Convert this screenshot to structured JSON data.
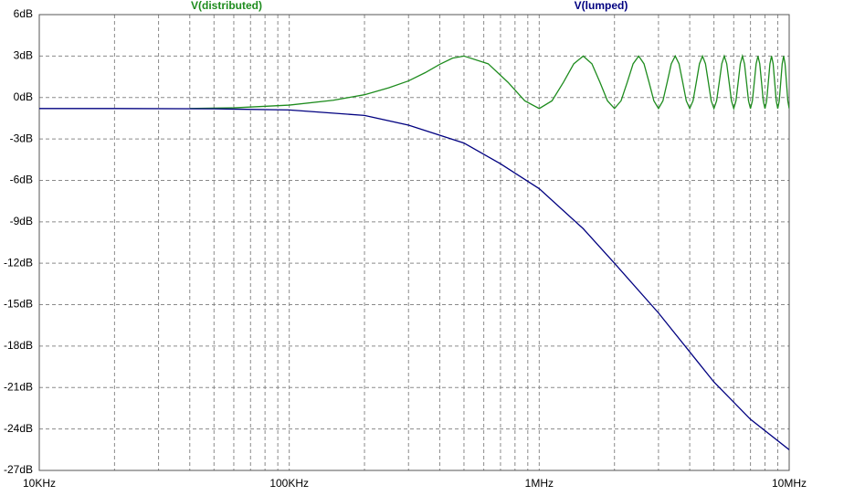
{
  "chart_data": {
    "type": "line",
    "log_x": true,
    "grid": true,
    "xlim": [
      10000,
      10000000
    ],
    "xticks": [
      {
        "value": 10000,
        "label": "10KHz"
      },
      {
        "value": 100000,
        "label": "100KHz"
      },
      {
        "value": 1000000,
        "label": "1MHz"
      },
      {
        "value": 10000000,
        "label": "10MHz"
      }
    ],
    "xminorticks": [
      20000,
      30000,
      40000,
      50000,
      60000,
      70000,
      80000,
      90000,
      200000,
      300000,
      400000,
      500000,
      600000,
      700000,
      800000,
      900000,
      2000000,
      3000000,
      4000000,
      5000000,
      6000000,
      7000000,
      8000000,
      9000000
    ],
    "ylim": [
      -27,
      6
    ],
    "yticks": [
      {
        "value": 6,
        "label": "6dB"
      },
      {
        "value": 3,
        "label": "3dB"
      },
      {
        "value": 0,
        "label": "0dB"
      },
      {
        "value": -3,
        "label": "-3dB"
      },
      {
        "value": -6,
        "label": "-6dB"
      },
      {
        "value": -9,
        "label": "-9dB"
      },
      {
        "value": -12,
        "label": "-12dB"
      },
      {
        "value": -15,
        "label": "-15dB"
      },
      {
        "value": -18,
        "label": "-18dB"
      },
      {
        "value": -21,
        "label": "-21dB"
      },
      {
        "value": -24,
        "label": "-24dB"
      },
      {
        "value": -27,
        "label": "-27dB"
      }
    ],
    "series": [
      {
        "name": "V(distributed)",
        "color": "#1e8c1e",
        "x": [
          40000,
          60000,
          100000,
          150000,
          200000,
          250000,
          300000,
          350000,
          400000,
          450000,
          500000,
          625000,
          750000,
          875000,
          1000000,
          1125000,
          1250000,
          1375000,
          1500000,
          1625000,
          1750000,
          1875000,
          2000000,
          2125000,
          2250000,
          2375000,
          2500000,
          2625000,
          2750000,
          2875000,
          3000000,
          3125000,
          3250000,
          3375000,
          3500000,
          3625000,
          3750000,
          3875000,
          4000000,
          4125000,
          4250000,
          4375000,
          4500000,
          4625000,
          4750000,
          4875000,
          5000000,
          5125000,
          5250000,
          5375000,
          5500000,
          5625000,
          5750000,
          5875000,
          6000000,
          6125000,
          6250000,
          6375000,
          6500000,
          6625000,
          6750000,
          6875000,
          7000000,
          7125000,
          7250000,
          7375000,
          7500000,
          7625000,
          7750000,
          7875000,
          8000000,
          8125000,
          8250000,
          8375000,
          8500000,
          8625000,
          8750000,
          8875000,
          9000000,
          9125000,
          9250000,
          9375000,
          9500000,
          9625000,
          9750000,
          9875000,
          10000000
        ],
        "values": [
          -0.8,
          -0.75,
          -0.55,
          -0.2,
          0.2,
          0.7,
          1.2,
          1.8,
          2.4,
          2.85,
          3.0,
          2.44,
          1.1,
          -0.24,
          -0.8,
          -0.24,
          1.1,
          2.44,
          3.0,
          2.44,
          1.1,
          -0.24,
          -0.8,
          -0.24,
          1.1,
          2.44,
          3.0,
          2.44,
          1.1,
          -0.24,
          -0.8,
          -0.24,
          1.1,
          2.44,
          3.0,
          2.44,
          1.1,
          -0.24,
          -0.8,
          -0.24,
          1.1,
          2.44,
          3.0,
          2.44,
          1.1,
          -0.24,
          -0.8,
          -0.24,
          1.1,
          2.44,
          3.0,
          2.44,
          1.1,
          -0.24,
          -0.8,
          -0.24,
          1.1,
          2.44,
          3.0,
          2.44,
          1.1,
          -0.24,
          -0.8,
          -0.24,
          1.1,
          2.44,
          3.0,
          2.44,
          1.1,
          -0.24,
          -0.8,
          -0.24,
          1.1,
          2.44,
          3.0,
          2.44,
          1.1,
          -0.24,
          -0.8,
          -0.24,
          1.1,
          2.44,
          3.0,
          2.44,
          1.1,
          -0.24,
          -0.8
        ]
      },
      {
        "name": "V(lumped)",
        "color": "#000080",
        "x": [
          10000,
          20000,
          50000,
          100000,
          200000,
          300000,
          500000,
          700000,
          1000000,
          1500000,
          2000000,
          3000000,
          5000000,
          7000000,
          10000000
        ],
        "values": [
          -0.8,
          -0.8,
          -0.82,
          -0.9,
          -1.3,
          -2.0,
          -3.3,
          -4.8,
          -6.6,
          -9.5,
          -12.0,
          -15.6,
          -20.6,
          -23.3,
          -25.5
        ]
      }
    ]
  }
}
